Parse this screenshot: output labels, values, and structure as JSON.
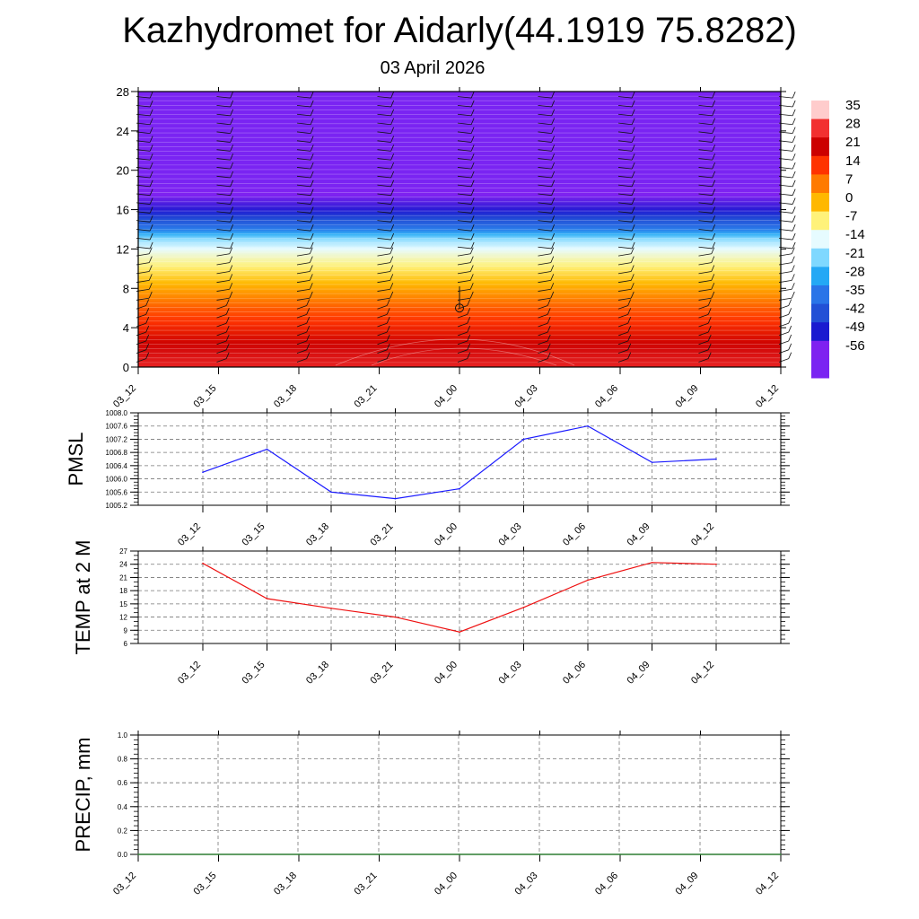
{
  "title": "Kazhydromet for Aidarly(44.1919 75.8282)",
  "date": "03 April 2026",
  "time_labels": [
    "03_12",
    "03_15",
    "03_18",
    "03_21",
    "04_00",
    "04_03",
    "04_06",
    "04_09",
    "04_12"
  ],
  "chart_data": [
    {
      "type": "heatmap",
      "title": "",
      "ylabel": "",
      "x": [
        "03_12",
        "03_15",
        "03_18",
        "03_21",
        "04_00",
        "04_03",
        "04_06",
        "04_09",
        "04_12"
      ],
      "ylim": [
        0,
        28
      ],
      "yticks": [
        0,
        4,
        8,
        12,
        16,
        20,
        24,
        28
      ],
      "z_levels": [
        0,
        2,
        4,
        6,
        8,
        10,
        12,
        13,
        14,
        16,
        18,
        19,
        28
      ],
      "z_values": [
        26,
        22,
        16,
        10,
        2,
        -6,
        -14,
        -20,
        -34,
        -50,
        -58,
        -60,
        -60
      ],
      "colorbar_labels": [
        "35",
        "28",
        "21",
        "14",
        "7",
        "0",
        "-7",
        "-14",
        "-21",
        "-28",
        "-35",
        "-42",
        "-49",
        "-56"
      ],
      "marker": {
        "x": "04_00",
        "y": 6
      }
    },
    {
      "type": "line",
      "ylabel": "PMSL",
      "x": [
        "03_12",
        "03_15",
        "03_18",
        "03_21",
        "04_00",
        "04_03",
        "04_06",
        "04_09",
        "04_12"
      ],
      "y": [
        1006.2,
        1006.9,
        1005.6,
        1005.4,
        1005.7,
        1007.2,
        1007.6,
        1006.5,
        1006.6
      ],
      "ylim": [
        1005.2,
        1008.0
      ],
      "yticks": [
        "1005.2",
        "1005.6",
        "1006.0",
        "1006.4",
        "1006.8",
        "1007.2",
        "1007.6",
        "1008.0"
      ],
      "color": "#1a1aff",
      "grid": true
    },
    {
      "type": "line",
      "ylabel": "TEMP at 2 M",
      "x": [
        "03_12",
        "03_15",
        "03_18",
        "03_21",
        "04_00",
        "04_03",
        "04_06",
        "04_09",
        "04_12"
      ],
      "y": [
        24.2,
        16.2,
        14.0,
        12.0,
        8.6,
        14.2,
        20.4,
        24.4,
        24.0
      ],
      "ylim": [
        6,
        27
      ],
      "yticks": [
        "6",
        "9",
        "12",
        "15",
        "18",
        "21",
        "24",
        "27"
      ],
      "color": "#ee1111",
      "grid": true
    },
    {
      "type": "line",
      "ylabel": "PRECIP, mm",
      "x": [
        "03_12",
        "03_15",
        "03_18",
        "03_21",
        "04_00",
        "04_03",
        "04_06",
        "04_09",
        "04_12"
      ],
      "y": [
        0,
        0,
        0,
        0,
        0,
        0,
        0,
        0,
        0
      ],
      "ylim": [
        0,
        1
      ],
      "yticks": [
        "0.0",
        "0.2",
        "0.4",
        "0.6",
        "0.8",
        "1.0"
      ],
      "color": "#2e7d32",
      "grid": true
    }
  ]
}
